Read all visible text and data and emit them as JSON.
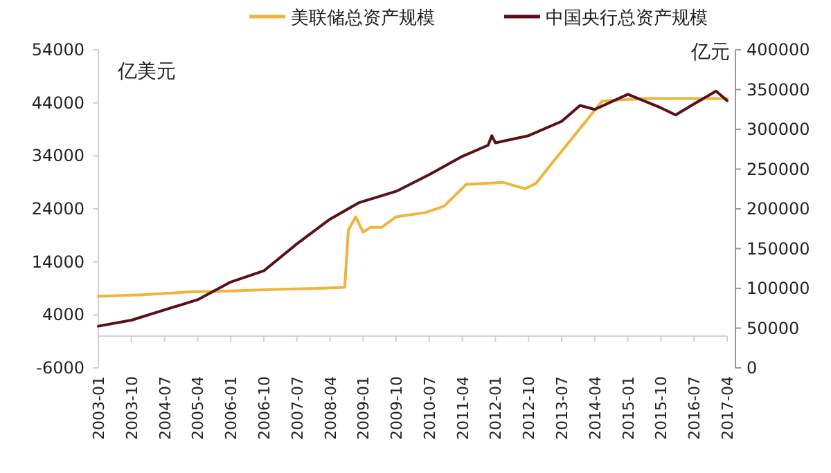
{
  "chart_data": {
    "type": "line",
    "ylabel": "亿美元",
    "y2label": "亿元",
    "legend": "top",
    "grid": false,
    "xlim": [
      "2003-01",
      "2017-04"
    ],
    "xticks": [
      "2003-01",
      "2003-10",
      "2004-07",
      "2005-04",
      "2006-01",
      "2006-10",
      "2007-07",
      "2008-04",
      "2009-01",
      "2009-10",
      "2010-07",
      "2011-04",
      "2012-01",
      "2012-10",
      "2013-07",
      "2014-04",
      "2015-01",
      "2015-10",
      "2016-07",
      "2017-04"
    ],
    "ylim": [
      -6000,
      54000
    ],
    "yticks": [
      -6000,
      4000,
      14000,
      24000,
      34000,
      44000,
      54000
    ],
    "y2lim": [
      0,
      400000
    ],
    "y2ticks": [
      0,
      50000,
      100000,
      150000,
      200000,
      250000,
      300000,
      350000,
      400000
    ],
    "series": [
      {
        "name": "美联储总资产规模",
        "color": "#f0b43c",
        "x": [
          "2003-01",
          "2004-01",
          "2005-01",
          "2006-01",
          "2007-01",
          "2008-01",
          "2008-08",
          "2008-09",
          "2008-11",
          "2009-01",
          "2009-03",
          "2009-06",
          "2009-10",
          "2010-06",
          "2010-11",
          "2011-05",
          "2011-10",
          "2012-03",
          "2012-09",
          "2012-12",
          "2013-06",
          "2014-01",
          "2014-06",
          "2014-10",
          "2015-06",
          "2016-06",
          "2017-04"
        ],
        "values": [
          7500,
          7800,
          8300,
          8500,
          8800,
          9000,
          9200,
          20000,
          22500,
          19600,
          20500,
          20500,
          22500,
          23300,
          24500,
          28600,
          28800,
          29000,
          27800,
          28800,
          34000,
          40000,
          44300,
          44500,
          44800,
          44800,
          44800
        ]
      },
      {
        "name": "中国央行总资产规模",
        "color": "#5a0f1a",
        "axis": "y2",
        "x": [
          "2003-01",
          "2003-10",
          "2004-07",
          "2005-04",
          "2006-01",
          "2006-10",
          "2007-07",
          "2008-04",
          "2008-12",
          "2009-10",
          "2010-07",
          "2011-04",
          "2011-11",
          "2011-12",
          "2012-01",
          "2012-10",
          "2013-07",
          "2013-12",
          "2014-04",
          "2015-01",
          "2015-10",
          "2016-02",
          "2016-07",
          "2017-01",
          "2017-04"
        ],
        "values": [
          52500,
          60000,
          73000,
          85700,
          108000,
          122000,
          156000,
          187000,
          208000,
          222000,
          243000,
          266000,
          280000,
          292000,
          283000,
          292000,
          310000,
          330000,
          325000,
          344000,
          327000,
          318000,
          332000,
          348000,
          336000
        ]
      }
    ]
  }
}
